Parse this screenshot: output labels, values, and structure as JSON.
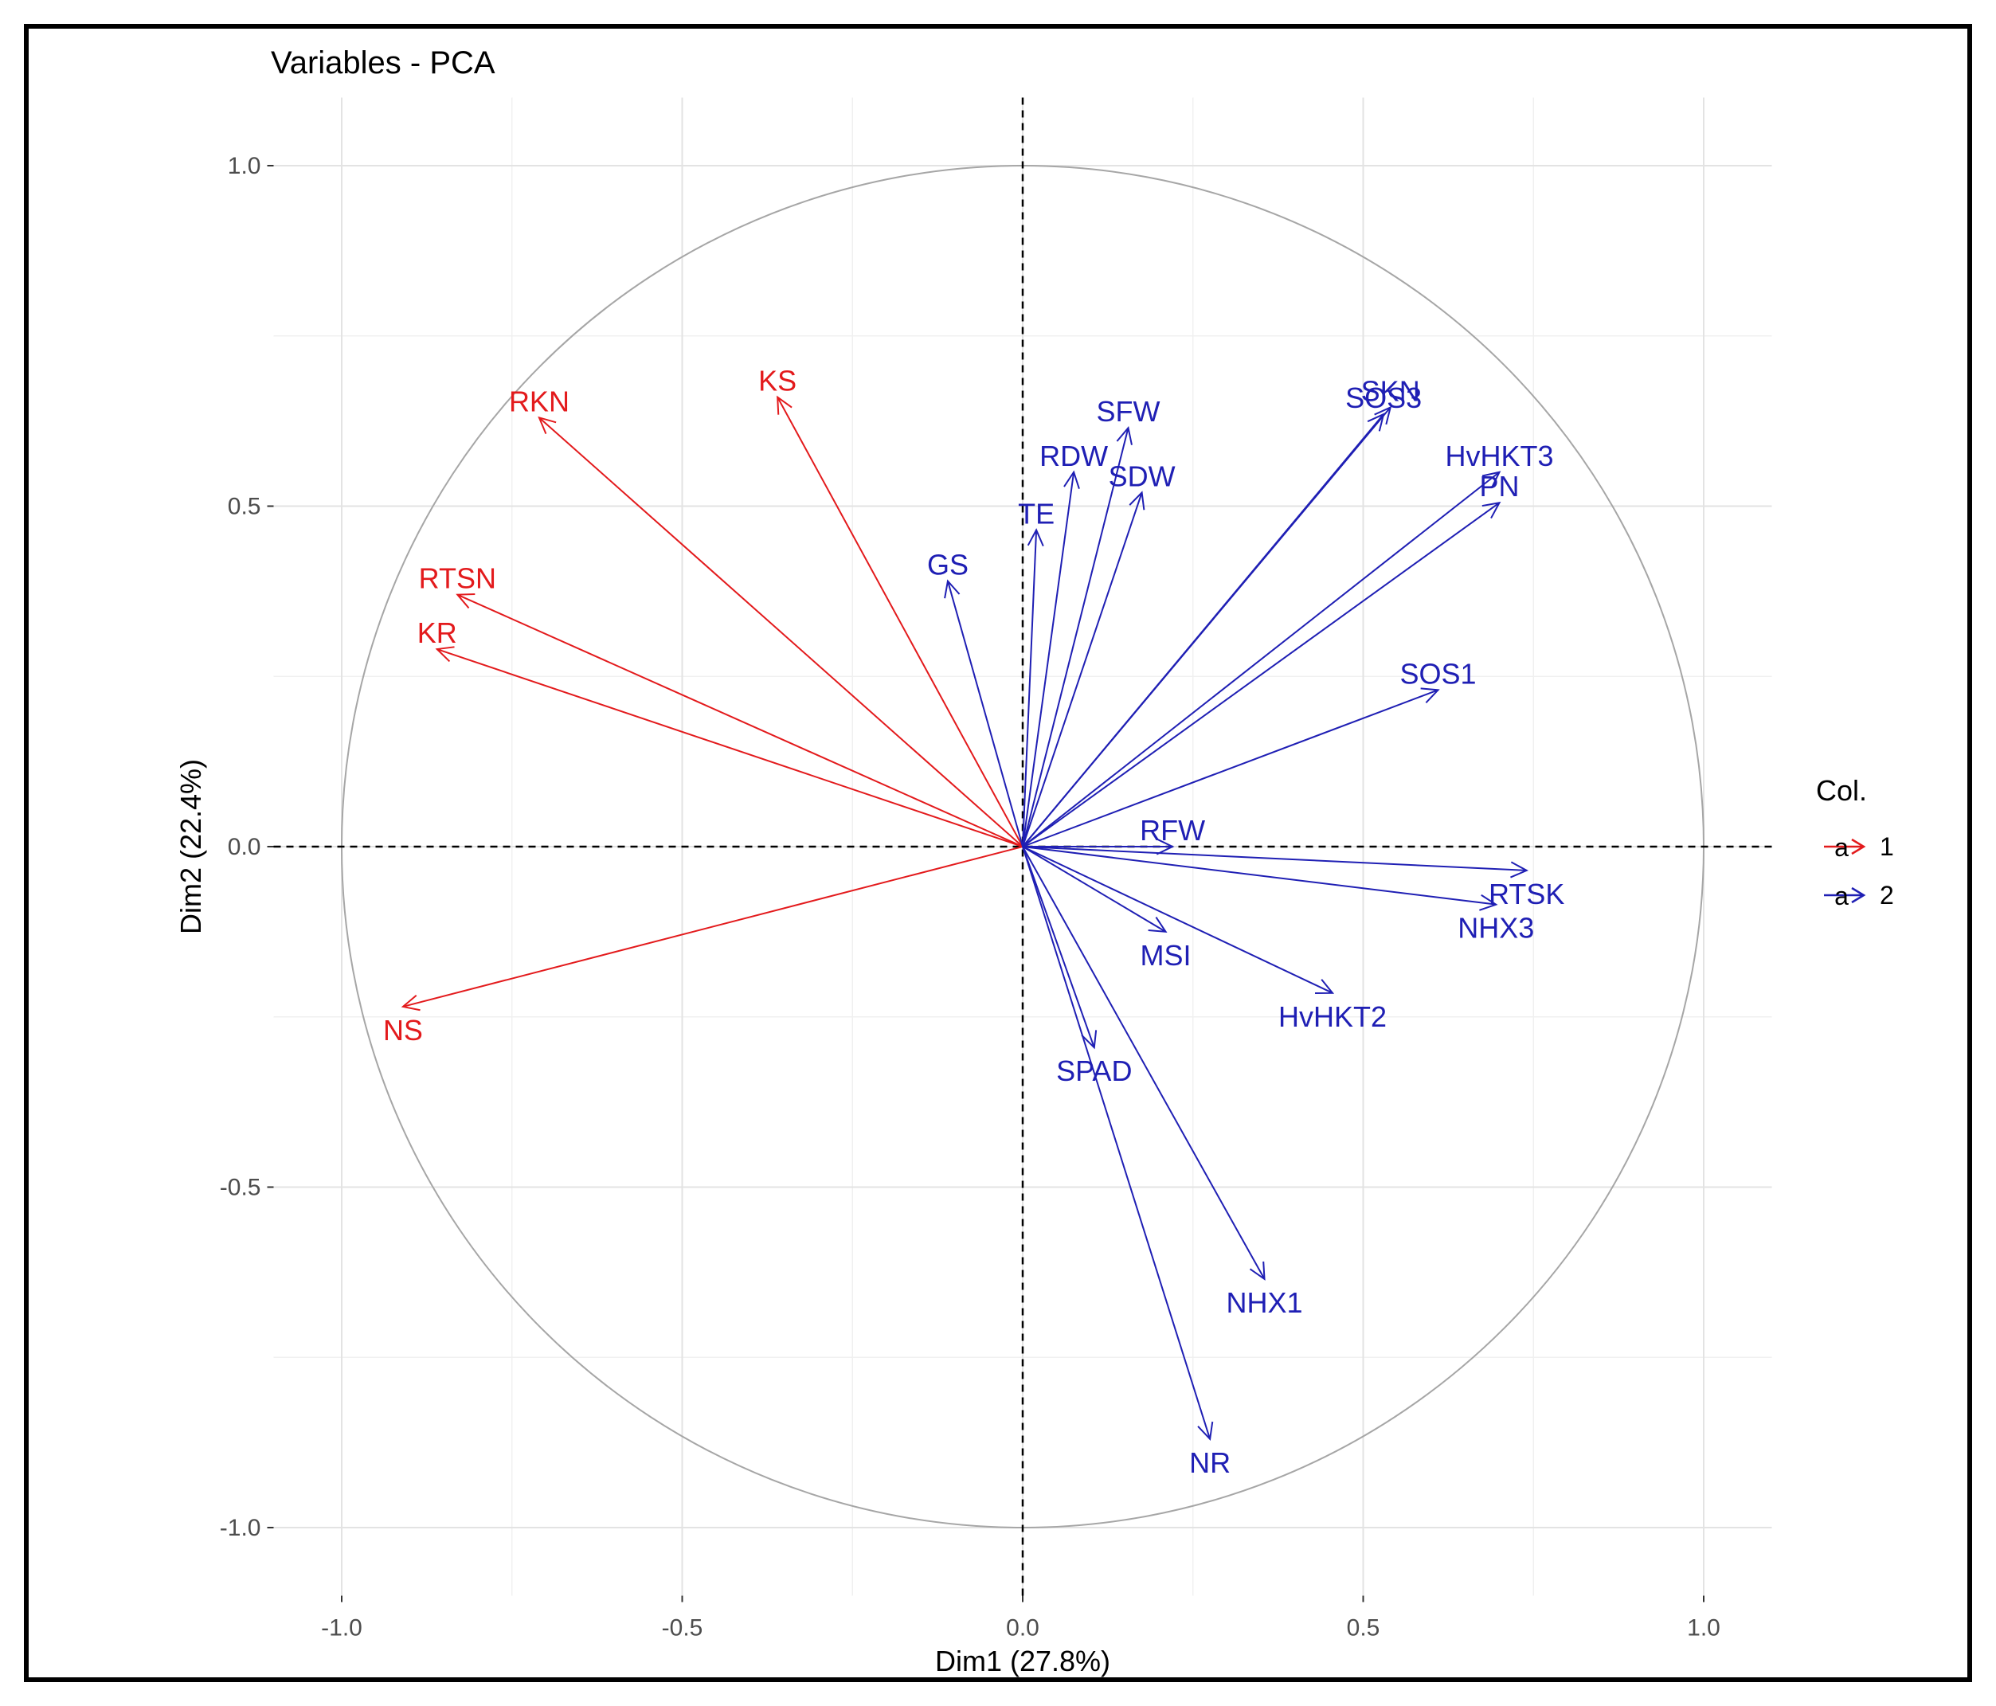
{
  "chart_data": {
    "type": "scatter",
    "title": "Variables - PCA",
    "xlabel": "Dim1 (27.8%)",
    "ylabel": "Dim2 (22.4%)",
    "xlim": [
      -1.1,
      1.1
    ],
    "ylim": [
      -1.1,
      1.1
    ],
    "xticks": [
      -1.0,
      -0.5,
      0.0,
      0.5,
      1.0
    ],
    "yticks": [
      -1.0,
      -0.5,
      0.0,
      0.5,
      1.0
    ],
    "xtick_labels": [
      "-1.0",
      "-0.5",
      "0.0",
      "0.5",
      "1.0"
    ],
    "ytick_labels": [
      "-1.0",
      "-0.5",
      "0.0",
      "0.5",
      "1.0"
    ],
    "grid": true,
    "legend": {
      "title": "Col.",
      "position": "right",
      "glyph": "a",
      "entries": [
        {
          "label": "1",
          "color": "#e31a1c"
        },
        {
          "label": "2",
          "color": "#1f1fb4"
        }
      ]
    },
    "series": [
      {
        "name": "1",
        "color": "#e31a1c",
        "points": [
          {
            "label": "RKN",
            "x": -0.71,
            "y": 0.63
          },
          {
            "label": "KS",
            "x": -0.36,
            "y": 0.66
          },
          {
            "label": "RTSN",
            "x": -0.83,
            "y": 0.37
          },
          {
            "label": "KR",
            "x": -0.86,
            "y": 0.29
          },
          {
            "label": "NS",
            "x": -0.91,
            "y": -0.235
          }
        ]
      },
      {
        "name": "2",
        "color": "#1f1fb4",
        "points": [
          {
            "label": "SKN",
            "x": 0.54,
            "y": 0.645
          },
          {
            "label": "SOS3",
            "x": 0.53,
            "y": 0.635
          },
          {
            "label": "HvHKT3",
            "x": 0.7,
            "y": 0.55
          },
          {
            "label": "PN",
            "x": 0.7,
            "y": 0.505
          },
          {
            "label": "SFW",
            "x": 0.155,
            "y": 0.615
          },
          {
            "label": "RDW",
            "x": 0.075,
            "y": 0.55
          },
          {
            "label": "SDW",
            "x": 0.175,
            "y": 0.52
          },
          {
            "label": "TE",
            "x": 0.02,
            "y": 0.465
          },
          {
            "label": "GS",
            "x": -0.11,
            "y": 0.39
          },
          {
            "label": "SOS1",
            "x": 0.61,
            "y": 0.23
          },
          {
            "label": "RFW",
            "x": 0.22,
            "y": 0.0
          },
          {
            "label": "RTSK",
            "x": 0.74,
            "y": -0.035
          },
          {
            "label": "NHX3",
            "x": 0.695,
            "y": -0.085
          },
          {
            "label": "MSI",
            "x": 0.21,
            "y": -0.125
          },
          {
            "label": "HvHKT2",
            "x": 0.455,
            "y": -0.215
          },
          {
            "label": "SPAD",
            "x": 0.105,
            "y": -0.295
          },
          {
            "label": "NHX1",
            "x": 0.355,
            "y": -0.635
          },
          {
            "label": "NR",
            "x": 0.275,
            "y": -0.87
          }
        ]
      }
    ]
  }
}
